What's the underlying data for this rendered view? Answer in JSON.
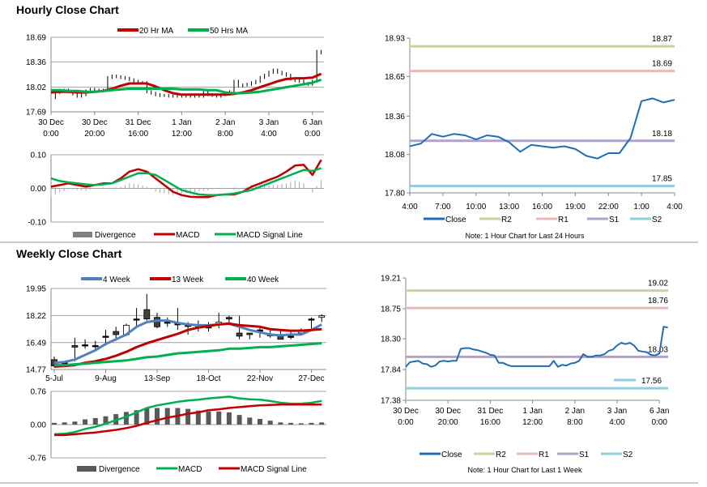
{
  "sections": {
    "hourly_title": "Hourly Close Chart",
    "weekly_title": "Weekly Close Chart"
  },
  "colors": {
    "ma_red": "#c00000",
    "ma_green": "#00b050",
    "ma_blue": "#4f81bd",
    "close": "#1f6eb5",
    "r2": "#c3d69b",
    "r1": "#e6b9b8",
    "s1": "#b3a2c7",
    "s2": "#93cddd",
    "divergence_light": "#a6a6a6",
    "divergence_dark": "#595959"
  },
  "chart_data": [
    {
      "id": "hourly_price",
      "type": "candlestick",
      "y_ticks": [
        "18.69",
        "18.36",
        "18.02",
        "17.69"
      ],
      "ylim": [
        17.69,
        18.69
      ],
      "grid": true,
      "x_ticks": [
        [
          "30 Dec",
          "0:00"
        ],
        [
          "30 Dec",
          "20:00"
        ],
        [
          "31 Dec",
          "16:00"
        ],
        [
          "1 Jan",
          "12:00"
        ],
        [
          "2 Jan",
          "8:00"
        ],
        [
          "3 Jan",
          "4:00"
        ],
        [
          "6 Jan",
          "0:00"
        ]
      ],
      "legend": [
        "20 Hr MA",
        "50 Hrs MA"
      ],
      "legend_position": "top",
      "close": [
        17.88,
        17.95,
        17.97,
        17.98,
        17.96,
        17.93,
        17.9,
        17.92,
        17.97,
        17.99,
        17.98,
        17.97,
        17.98,
        18.15,
        18.17,
        18.16,
        18.15,
        18.14,
        18.12,
        18.1,
        18.08,
        18.08,
        17.96,
        17.94,
        17.92,
        17.91,
        17.91,
        17.9,
        17.9,
        17.9,
        17.9,
        17.9,
        17.9,
        17.9,
        17.9,
        17.97,
        17.92,
        17.91,
        17.9,
        17.92,
        17.93,
        17.96,
        18.1,
        18.04,
        18.05,
        18.06,
        18.08,
        18.1,
        18.15,
        18.18,
        18.22,
        18.25,
        18.22,
        18.2,
        18.18,
        18.13,
        18.11,
        18.1,
        18.07,
        18.06,
        18.1,
        18.5,
        18.48
      ],
      "series": [
        {
          "name": "20 Hr MA",
          "values": [
            17.95,
            17.96,
            17.96,
            17.95,
            17.95,
            17.96,
            17.97,
            18.0,
            18.04,
            18.07,
            18.07,
            18.07,
            18.03,
            17.98,
            17.94,
            17.92,
            17.92,
            17.92,
            17.92,
            17.92,
            17.92,
            17.93,
            17.95,
            17.98,
            18.02,
            18.06,
            18.1,
            18.13,
            18.14,
            18.14,
            18.15,
            18.2
          ]
        },
        {
          "name": "50 Hrs MA",
          "values": [
            17.98,
            17.98,
            17.97,
            17.97,
            17.96,
            17.96,
            17.97,
            17.98,
            17.99,
            18.0,
            18.0,
            18.0,
            18.0,
            18.0,
            18.0,
            17.99,
            17.99,
            17.99,
            17.98,
            17.98,
            17.95,
            17.94,
            17.94,
            17.95,
            17.96,
            17.98,
            18.0,
            18.02,
            18.04,
            18.06,
            18.08,
            18.12
          ]
        }
      ]
    },
    {
      "id": "hourly_macd",
      "type": "line",
      "y_ticks": [
        "0.10",
        "0.00",
        "-0.10"
      ],
      "ylim": [
        -0.1,
        0.1
      ],
      "grid": true,
      "legend": [
        "Divergence",
        "MACD",
        "MACD Signal Line"
      ],
      "legend_position": "bottom",
      "series": [
        {
          "name": "MACD",
          "values": [
            0.005,
            0.01,
            0.015,
            0.01,
            0.005,
            0.01,
            0.015,
            0.015,
            0.03,
            0.05,
            0.057,
            0.05,
            0.03,
            0.01,
            -0.01,
            -0.02,
            -0.025,
            -0.026,
            -0.026,
            -0.02,
            -0.018,
            -0.018,
            -0.01,
            0.005,
            0.015,
            0.025,
            0.035,
            0.05,
            0.068,
            0.07,
            0.04,
            0.085
          ]
        },
        {
          "name": "MACD Signal Line",
          "values": [
            0.03,
            0.022,
            0.018,
            0.015,
            0.012,
            0.01,
            0.012,
            0.015,
            0.025,
            0.035,
            0.045,
            0.045,
            0.04,
            0.025,
            0.01,
            -0.005,
            -0.012,
            -0.018,
            -0.02,
            -0.02,
            -0.018,
            -0.015,
            -0.01,
            -0.005,
            0.005,
            0.015,
            0.025,
            0.035,
            0.045,
            0.055,
            0.052,
            0.06
          ]
        }
      ]
    },
    {
      "id": "hourly_24h",
      "type": "line",
      "y_ticks": [
        "18.93",
        "18.65",
        "18.36",
        "18.08",
        "17.80"
      ],
      "ylim": [
        17.8,
        18.93
      ],
      "grid": false,
      "x_ticks": [
        "4:00",
        "7:00",
        "10:00",
        "13:00",
        "16:00",
        "19:00",
        "22:00",
        "1:00",
        "4:00"
      ],
      "legend": [
        "Close",
        "R2",
        "R1",
        "S1",
        "S2"
      ],
      "legend_position": "bottom",
      "levels": {
        "R2": "18.87",
        "R1": "18.69",
        "S1": "18.18",
        "S2": "17.85"
      },
      "close": [
        18.14,
        18.16,
        18.23,
        18.21,
        18.23,
        18.22,
        18.19,
        18.22,
        18.21,
        18.17,
        18.1,
        18.15,
        18.14,
        18.13,
        18.14,
        18.12,
        18.07,
        18.05,
        18.09,
        18.09,
        18.2,
        18.47,
        18.49,
        18.46,
        18.48
      ],
      "note": "Note: 1 Hour Chart for Last 24 Hours"
    },
    {
      "id": "weekly_price",
      "type": "candlestick",
      "y_ticks": [
        "19.95",
        "18.22",
        "16.49",
        "14.77"
      ],
      "ylim": [
        14.77,
        19.95
      ],
      "grid": true,
      "x_ticks": [
        "5-Jul",
        "9-Aug",
        "13-Sep",
        "18-Oct",
        "22-Nov",
        "27-Dec"
      ],
      "legend": [
        "4 Week",
        "13 Week",
        "40 Week"
      ],
      "legend_position": "top",
      "ohlc": [
        [
          15.4,
          15.6,
          14.9,
          15.0
        ],
        [
          15.2,
          15.3,
          15.1,
          15.2
        ],
        [
          16.3,
          16.8,
          15.3,
          16.2
        ],
        [
          16.35,
          16.7,
          16.1,
          16.35
        ],
        [
          16.3,
          16.6,
          16.0,
          16.3
        ],
        [
          16.9,
          17.3,
          16.3,
          16.9
        ],
        [
          17.2,
          17.5,
          16.6,
          17.0
        ],
        [
          17.0,
          17.7,
          16.9,
          17.6
        ],
        [
          18.0,
          18.7,
          17.4,
          18.0
        ],
        [
          18.6,
          19.6,
          17.9,
          18.0
        ],
        [
          18.1,
          18.4,
          17.4,
          17.5
        ],
        [
          17.8,
          18.1,
          17.5,
          17.8
        ],
        [
          17.7,
          18.7,
          17.3,
          17.7
        ],
        [
          17.6,
          17.8,
          17.0,
          17.6
        ],
        [
          17.5,
          17.9,
          17.2,
          17.5
        ],
        [
          17.5,
          17.8,
          17.2,
          17.5
        ],
        [
          17.7,
          18.4,
          17.4,
          17.8
        ],
        [
          18.1,
          18.2,
          17.7,
          18.0
        ],
        [
          17.1,
          18.2,
          16.7,
          16.9
        ],
        [
          17.1,
          17.1,
          16.7,
          17.0
        ],
        [
          17.3,
          17.5,
          16.8,
          17.3
        ],
        [
          17.0,
          17.3,
          16.8,
          17.0
        ],
        [
          17.0,
          17.3,
          16.7,
          16.7
        ],
        [
          16.9,
          17.3,
          16.7,
          16.9
        ],
        [
          17.1,
          17.4,
          17.0,
          17.3
        ],
        [
          18.0,
          18.1,
          17.4,
          18.0
        ],
        [
          18.1,
          18.3,
          17.8,
          18.2
        ]
      ],
      "series": [
        {
          "name": "4 Week",
          "values": [
            15.2,
            15.25,
            15.4,
            15.7,
            16.0,
            16.4,
            16.7,
            17.0,
            17.5,
            17.8,
            17.9,
            17.9,
            17.75,
            17.65,
            17.6,
            17.6,
            17.65,
            17.7,
            17.5,
            17.3,
            17.15,
            17.0,
            16.95,
            17.0,
            17.0,
            17.3,
            17.65
          ]
        },
        {
          "name": "13 Week",
          "values": [
            14.95,
            15.0,
            15.05,
            15.2,
            15.3,
            15.45,
            15.65,
            15.9,
            16.2,
            16.45,
            16.65,
            16.85,
            17.05,
            17.3,
            17.45,
            17.55,
            17.65,
            17.7,
            17.6,
            17.55,
            17.5,
            17.35,
            17.3,
            17.25,
            17.25,
            17.3,
            17.35
          ]
        },
        {
          "name": "40 Week",
          "values": [
            15.05,
            15.05,
            15.1,
            15.15,
            15.2,
            15.25,
            15.3,
            15.35,
            15.45,
            15.55,
            15.6,
            15.7,
            15.8,
            15.85,
            15.9,
            15.95,
            16.0,
            16.1,
            16.1,
            16.15,
            16.2,
            16.2,
            16.25,
            16.3,
            16.35,
            16.4,
            16.45
          ]
        }
      ]
    },
    {
      "id": "weekly_macd",
      "type": "bar+line",
      "y_ticks": [
        "0.76",
        "0.00",
        "-0.76"
      ],
      "ylim": [
        -0.76,
        0.76
      ],
      "grid": true,
      "legend": [
        "Divergence",
        "MACD",
        "MACD Signal Line"
      ],
      "legend_position": "bottom",
      "divergence": [
        0.04,
        0.05,
        0.07,
        0.12,
        0.15,
        0.19,
        0.24,
        0.29,
        0.33,
        0.37,
        0.38,
        0.38,
        0.38,
        0.36,
        0.32,
        0.3,
        0.3,
        0.28,
        0.22,
        0.16,
        0.13,
        0.09,
        0.05,
        0.04,
        0.03,
        0.04,
        0.05
      ],
      "series": [
        {
          "name": "MACD",
          "values": [
            -0.22,
            -0.21,
            -0.17,
            -0.1,
            -0.05,
            0.02,
            0.1,
            0.18,
            0.28,
            0.38,
            0.44,
            0.48,
            0.52,
            0.55,
            0.57,
            0.6,
            0.62,
            0.64,
            0.6,
            0.58,
            0.57,
            0.54,
            0.5,
            0.48,
            0.48,
            0.5,
            0.54
          ]
        },
        {
          "name": "MACD Signal Line",
          "values": [
            -0.24,
            -0.24,
            -0.22,
            -0.2,
            -0.18,
            -0.15,
            -0.12,
            -0.08,
            -0.03,
            0.04,
            0.1,
            0.16,
            0.2,
            0.25,
            0.28,
            0.33,
            0.35,
            0.38,
            0.4,
            0.42,
            0.44,
            0.45,
            0.46,
            0.46,
            0.46,
            0.46,
            0.46
          ]
        }
      ]
    },
    {
      "id": "hourly_1week",
      "type": "line",
      "y_ticks": [
        "19.21",
        "18.75",
        "18.30",
        "17.84",
        "17.38"
      ],
      "ylim": [
        17.38,
        19.21
      ],
      "grid": false,
      "x_ticks": [
        [
          "30 Dec",
          "0:00"
        ],
        [
          "30 Dec",
          "20:00"
        ],
        [
          "31 Dec",
          "16:00"
        ],
        [
          "1 Jan",
          "12:00"
        ],
        [
          "2 Jan",
          "8:00"
        ],
        [
          "3 Jan",
          "4:00"
        ],
        [
          "6 Jan",
          "0:00"
        ]
      ],
      "legend": [
        "Close",
        "R2",
        "R1",
        "S1",
        "S2"
      ],
      "legend_position": "bottom",
      "levels": {
        "R2": "19.02",
        "R1": "18.76",
        "S1": "18.03",
        "S2": "17.56"
      },
      "close": [
        17.88,
        17.95,
        17.96,
        17.97,
        17.93,
        17.92,
        17.88,
        17.9,
        17.96,
        17.97,
        17.96,
        17.97,
        17.97,
        18.15,
        18.16,
        18.16,
        18.14,
        18.13,
        18.11,
        18.09,
        18.06,
        18.05,
        17.94,
        17.94,
        17.91,
        17.89,
        17.89,
        17.89,
        17.89,
        17.89,
        17.89,
        17.89,
        17.89,
        17.89,
        17.89,
        17.97,
        17.88,
        17.91,
        17.9,
        17.93,
        17.94,
        17.97,
        18.07,
        18.03,
        18.03,
        18.05,
        18.05,
        18.07,
        18.12,
        18.14,
        18.2,
        18.24,
        18.22,
        18.24,
        18.2,
        18.12,
        18.11,
        18.1,
        18.06,
        18.05,
        18.08,
        18.48,
        18.47
      ],
      "note": "Note: 1 Hour Chart for Last 1 Week"
    }
  ]
}
